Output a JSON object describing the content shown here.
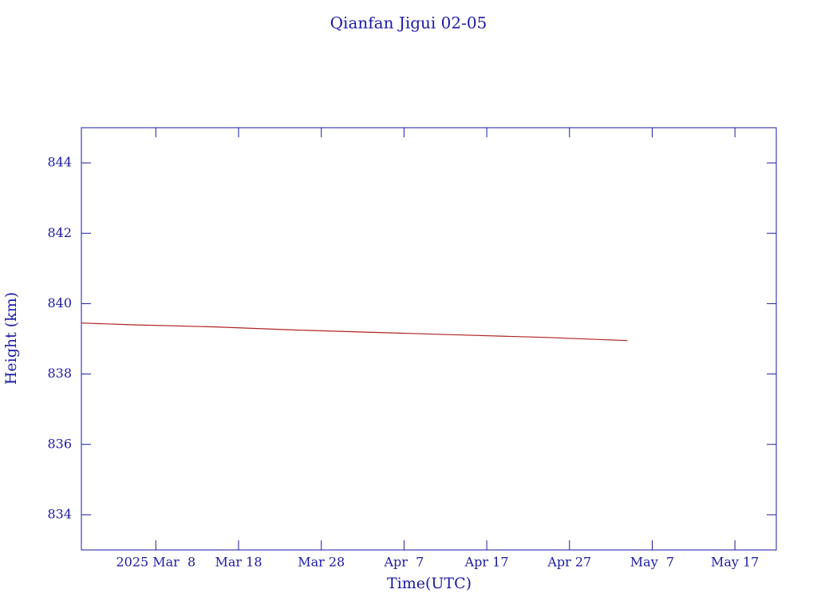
{
  "chart_data": {
    "type": "line",
    "title": "Qianfan Jigui 02-05",
    "x_label": "Time(UTC)",
    "y_label": "Height (km)",
    "xlim": [
      "2025-02-27",
      "2025-05-22"
    ],
    "xticks": [
      {
        "value": "2025-03-08",
        "label": "2025 Mar  8"
      },
      {
        "value": "2025-03-18",
        "label": "Mar 18"
      },
      {
        "value": "2025-03-28",
        "label": "Mar 28"
      },
      {
        "value": "2025-04-07",
        "label": "Apr  7"
      },
      {
        "value": "2025-04-17",
        "label": "Apr 17"
      },
      {
        "value": "2025-04-27",
        "label": "Apr 27"
      },
      {
        "value": "2025-05-07",
        "label": "May  7"
      },
      {
        "value": "2025-05-17",
        "label": "May 17"
      }
    ],
    "ylim": [
      833,
      845
    ],
    "yticks": [
      834,
      836,
      838,
      840,
      842,
      844
    ],
    "x": [
      "2025-02-27",
      "2025-03-05",
      "2025-03-15",
      "2025-03-25",
      "2025-04-04",
      "2025-04-14",
      "2025-04-24",
      "2025-05-04"
    ],
    "series": [
      {
        "name": "Height",
        "color": "#b22222",
        "values": [
          839.45,
          839.4,
          839.34,
          839.25,
          839.18,
          839.11,
          839.04,
          838.95
        ]
      }
    ]
  }
}
